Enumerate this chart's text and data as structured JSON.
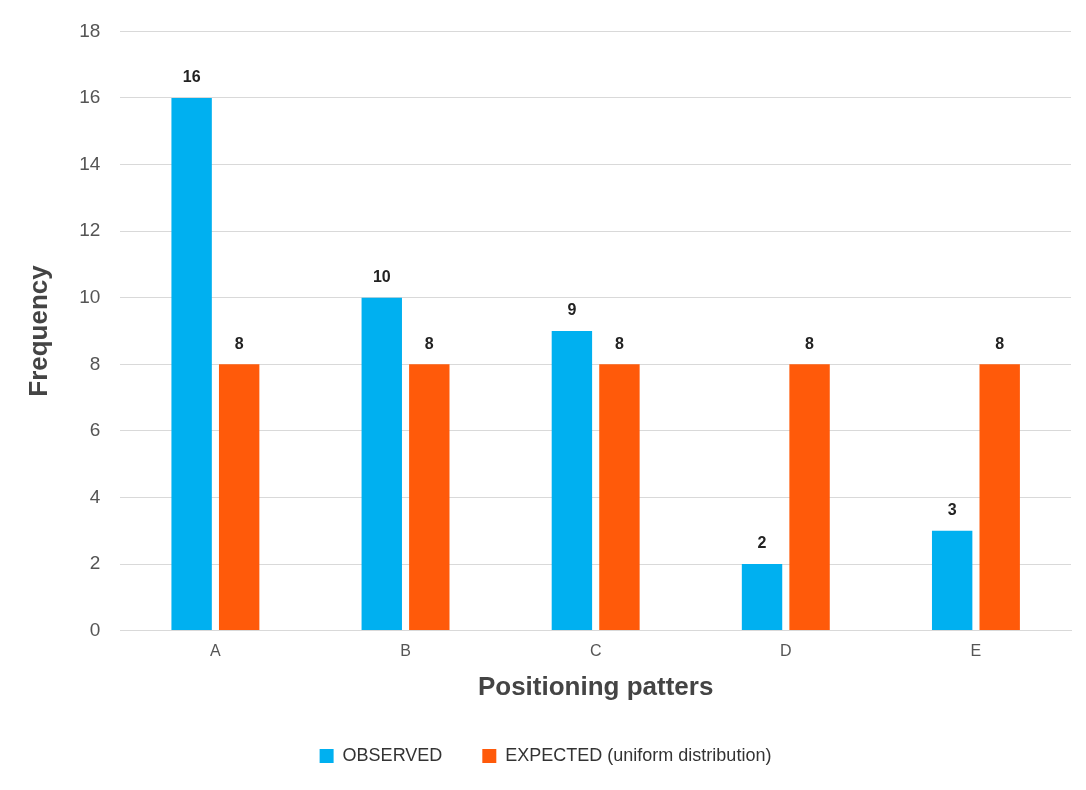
{
  "chart_data": {
    "type": "bar",
    "xlabel": "Positioning patters",
    "ylabel": "Frequency",
    "categories": [
      "A",
      "B",
      "C",
      "D",
      "E"
    ],
    "series": [
      {
        "name": "OBSERVED",
        "color": "#00b0f0",
        "values": [
          16,
          10,
          9,
          2,
          3
        ]
      },
      {
        "name": "EXPECTED (uniform distribution)",
        "color": "#ff5a0a",
        "values": [
          8,
          8,
          8,
          8,
          8
        ]
      }
    ],
    "ylim": [
      0,
      18
    ],
    "yticks": [
      0,
      2,
      4,
      6,
      8,
      10,
      12,
      14,
      16,
      18
    ],
    "grid": "y",
    "legend": "bottom",
    "data_labels": true
  }
}
